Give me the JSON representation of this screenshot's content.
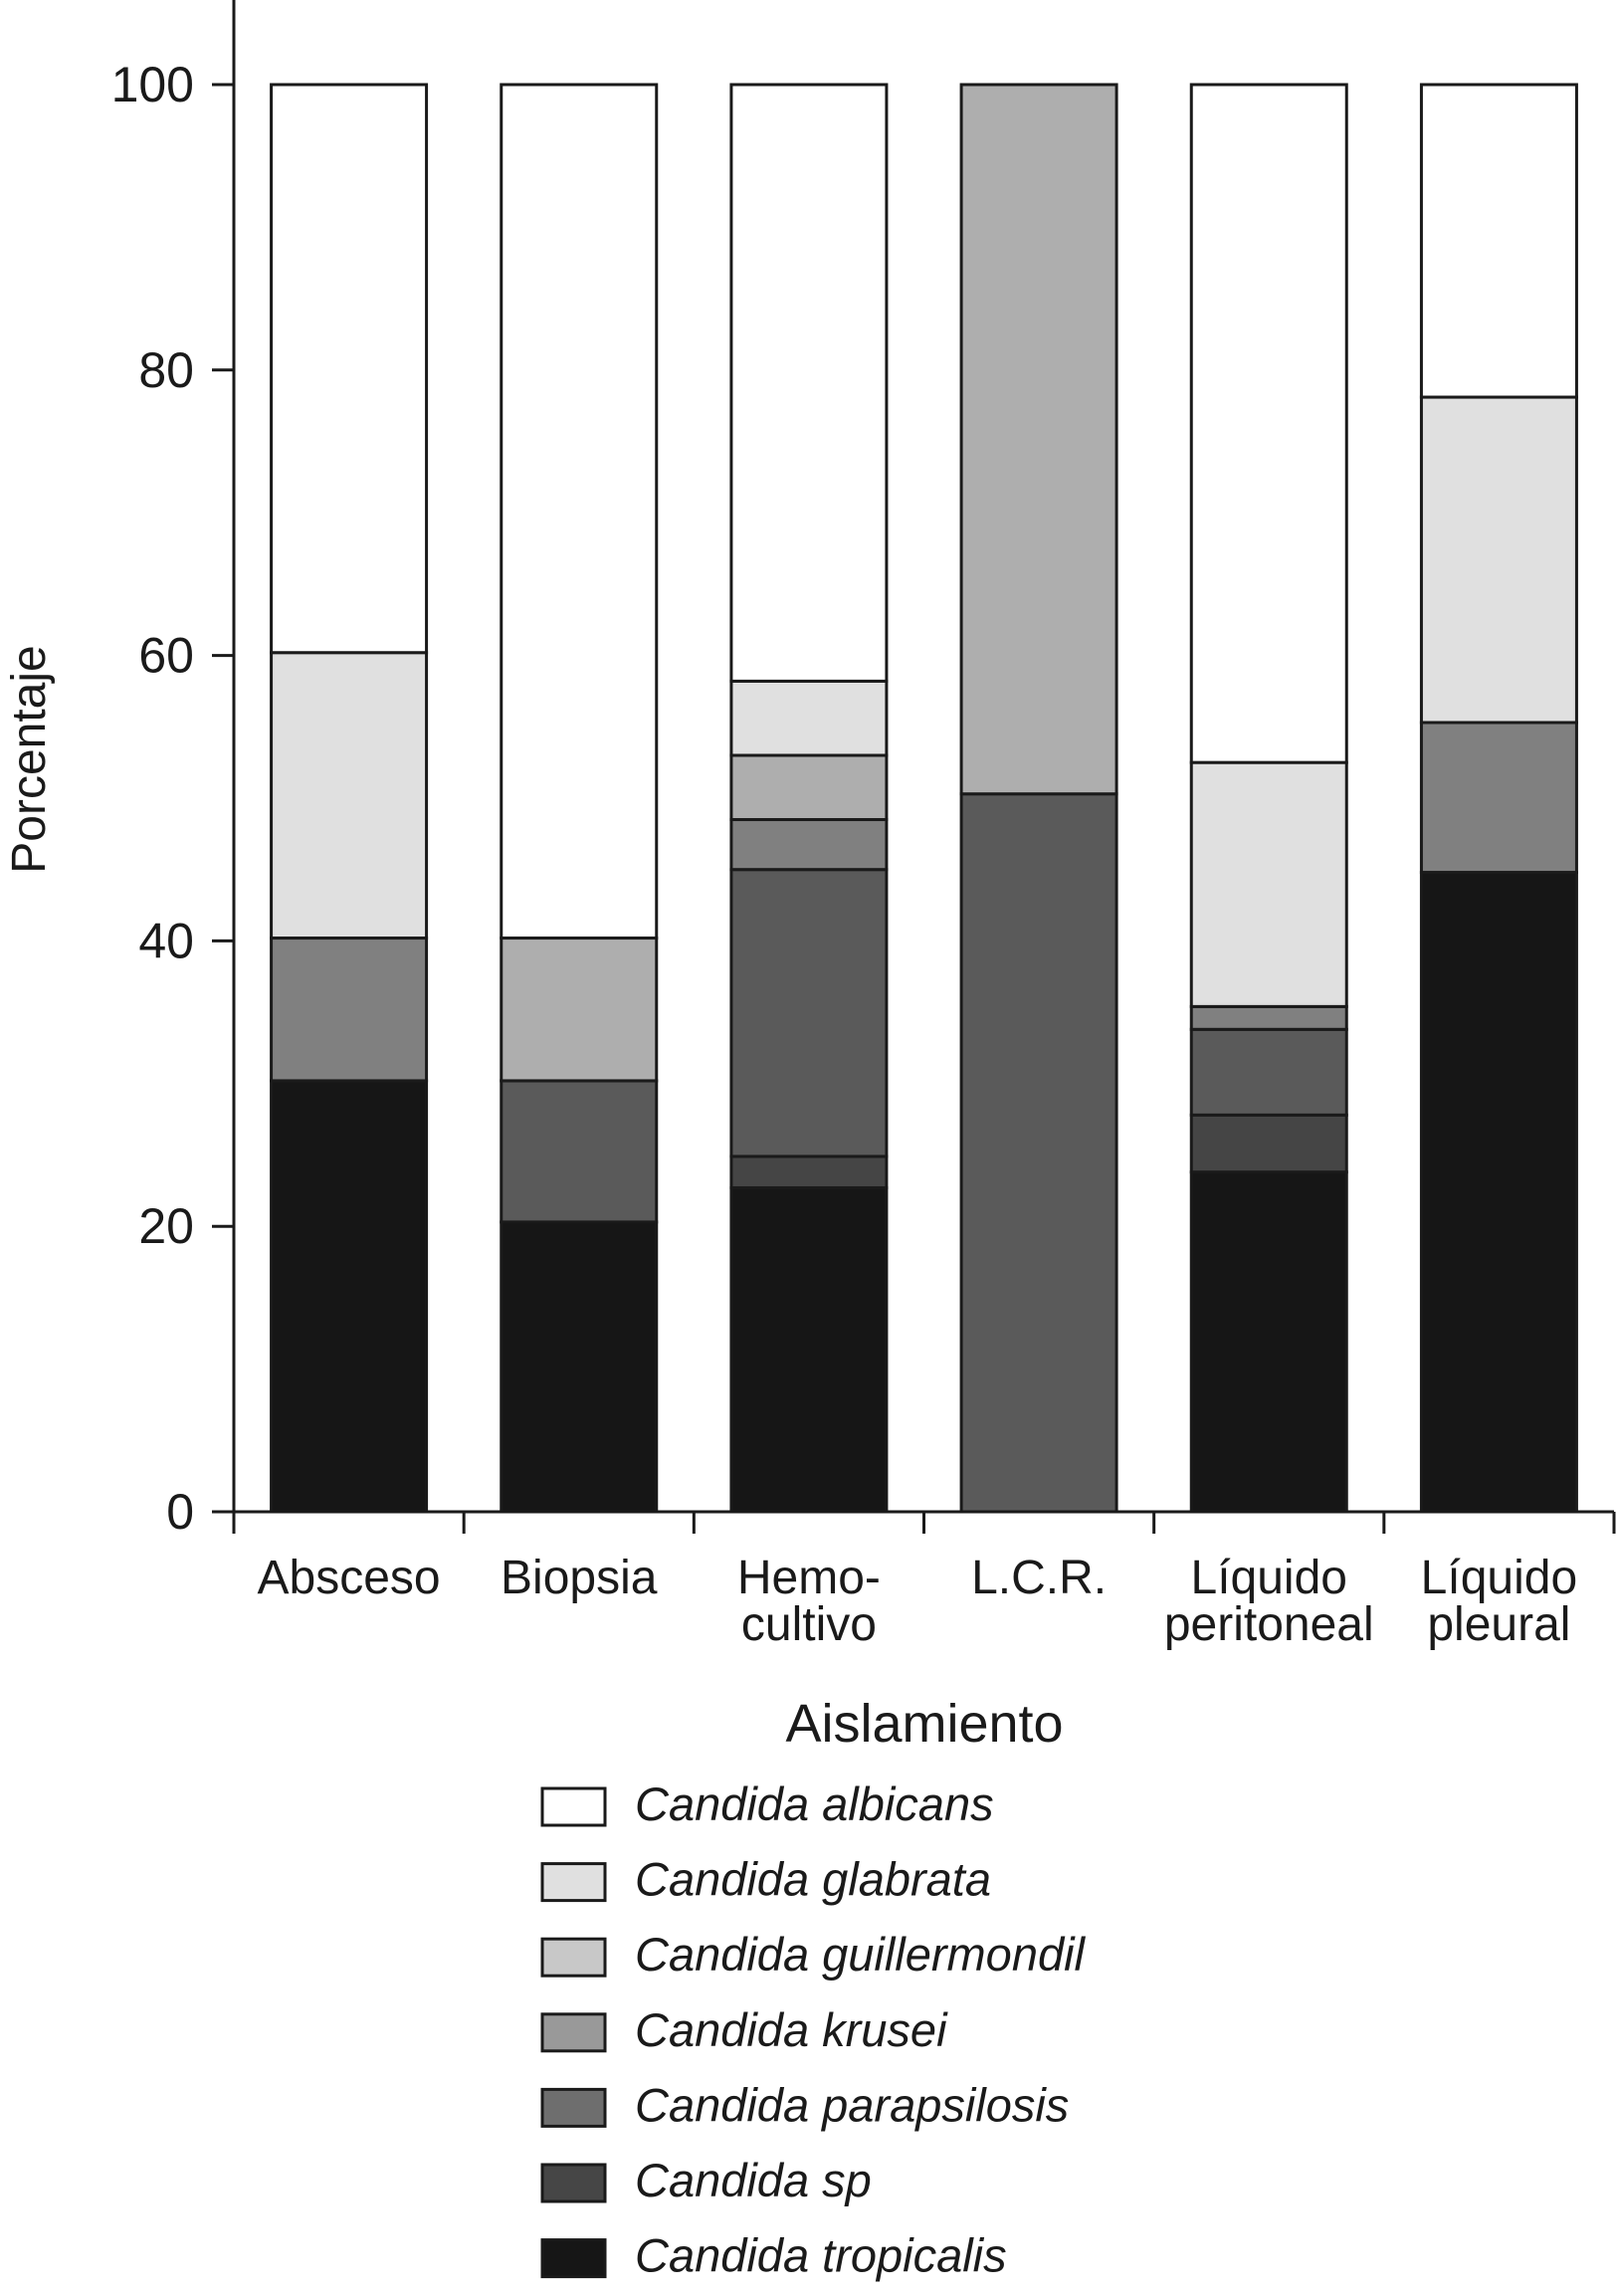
{
  "chart_data": {
    "type": "bar",
    "stacked": true,
    "title": "",
    "xlabel": "Aislamiento",
    "ylabel": "Porcentaje",
    "ylim": [
      0,
      100
    ],
    "yticks": [
      0,
      20,
      40,
      60,
      80,
      100
    ],
    "grid": false,
    "legend_position": "bottom",
    "categories": [
      [
        "Absceso"
      ],
      [
        "Biopsia"
      ],
      [
        "Hemo-",
        "cultivo"
      ],
      [
        "L.C.R."
      ],
      [
        "Líquido",
        "peritoneal"
      ],
      [
        "Líquido",
        "pleural"
      ]
    ],
    "series": [
      {
        "name": "Candida tropicalis",
        "legend_color": "#161616",
        "bar_color": "#161616",
        "values": [
          30.2,
          20.3,
          22.7,
          0,
          23.8,
          44.8
        ]
      },
      {
        "name": "Candida sp",
        "legend_color": "#464646",
        "bar_color": "#454545",
        "values": [
          0,
          0,
          2.2,
          0,
          4.0,
          0
        ]
      },
      {
        "name": "Candida parapsilosis",
        "legend_color": "#6e6e6e",
        "bar_color": "#5a5a5a",
        "values": [
          0,
          9.9,
          20.1,
          50.3,
          6.0,
          0
        ]
      },
      {
        "name": "Candida krusei",
        "legend_color": "#999999",
        "bar_color": "#808080",
        "values": [
          10.0,
          0,
          3.5,
          0,
          1.6,
          10.5
        ]
      },
      {
        "name": "Candida guillermondil",
        "legend_color": "#c8c8c8",
        "bar_color": "#aeaeae",
        "values": [
          0,
          10.0,
          4.5,
          49.7,
          0,
          0
        ]
      },
      {
        "name": "Candida glabrata",
        "legend_color": "#e0e0e0",
        "bar_color": "#e0e0e0",
        "values": [
          20.0,
          0,
          5.2,
          0,
          17.1,
          22.8
        ]
      },
      {
        "name": "Candida albicans",
        "legend_color": "#ffffff",
        "bar_color": "#ffffff",
        "values": [
          39.8,
          59.8,
          41.8,
          0,
          47.5,
          21.9
        ]
      }
    ],
    "legend_order": [
      "Candida albicans",
      "Candida glabrata",
      "Candida guillermondil",
      "Candida krusei",
      "Candida parapsilosis",
      "Candida sp",
      "Candida tropicalis"
    ]
  }
}
